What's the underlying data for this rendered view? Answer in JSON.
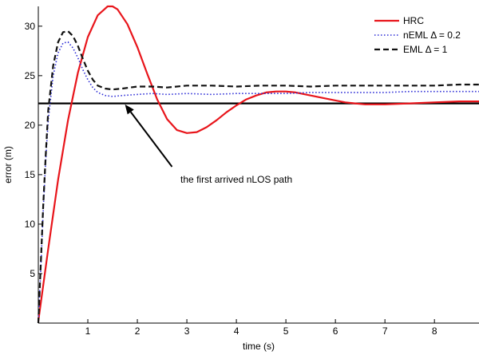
{
  "chart_data": {
    "type": "line",
    "title": "",
    "xlabel": "time (s)",
    "ylabel": "error (m)",
    "xlim": [
      0,
      8.9
    ],
    "ylim": [
      0,
      32
    ],
    "xticks": [
      1,
      2,
      3,
      4,
      5,
      6,
      7,
      8
    ],
    "yticks": [
      5,
      10,
      15,
      20,
      25,
      30
    ],
    "grid": false,
    "legend_position": "top-right",
    "series": [
      {
        "name": "HRC",
        "color": "#e8151b",
        "style": "solid",
        "x": [
          0,
          0.2,
          0.4,
          0.6,
          0.8,
          1.0,
          1.2,
          1.4,
          1.5,
          1.6,
          1.8,
          2.0,
          2.2,
          2.4,
          2.6,
          2.8,
          3.0,
          3.2,
          3.4,
          3.6,
          3.8,
          4.0,
          4.2,
          4.4,
          4.6,
          4.8,
          5.0,
          5.2,
          5.4,
          5.6,
          5.8,
          6.0,
          6.2,
          6.4,
          6.6,
          6.8,
          7.0,
          7.5,
          8.0,
          8.5,
          8.9
        ],
        "y": [
          0.2,
          7.5,
          14.5,
          20.5,
          25.3,
          28.9,
          31.1,
          32.0,
          32.0,
          31.7,
          30.2,
          27.9,
          25.2,
          22.6,
          20.6,
          19.5,
          19.2,
          19.3,
          19.8,
          20.5,
          21.3,
          22.0,
          22.6,
          23.0,
          23.3,
          23.4,
          23.4,
          23.3,
          23.1,
          22.9,
          22.7,
          22.5,
          22.3,
          22.2,
          22.1,
          22.1,
          22.1,
          22.2,
          22.3,
          22.4,
          22.4
        ]
      },
      {
        "name": "nEML Δ = 0.2",
        "color": "#2a2ad6",
        "style": "dotted",
        "x": [
          0,
          0.05,
          0.1,
          0.15,
          0.2,
          0.3,
          0.4,
          0.5,
          0.6,
          0.7,
          0.8,
          0.9,
          1.0,
          1.1,
          1.2,
          1.35,
          1.5,
          1.7,
          2.0,
          2.3,
          2.6,
          3.0,
          3.5,
          4.0,
          4.5,
          5.0,
          5.5,
          6.0,
          6.5,
          7.0,
          7.5,
          8.0,
          8.5,
          8.9
        ],
        "y": [
          0,
          5.5,
          11.5,
          16.5,
          20.5,
          25.0,
          27.3,
          28.3,
          28.4,
          27.8,
          26.8,
          25.6,
          24.6,
          23.8,
          23.3,
          23.0,
          22.9,
          23.0,
          23.1,
          23.2,
          23.1,
          23.2,
          23.1,
          23.2,
          23.2,
          23.2,
          23.3,
          23.3,
          23.3,
          23.3,
          23.4,
          23.4,
          23.4,
          23.4
        ]
      },
      {
        "name": "EML Δ = 1",
        "color": "#111111",
        "style": "dashed",
        "x": [
          0,
          0.05,
          0.1,
          0.15,
          0.2,
          0.3,
          0.4,
          0.5,
          0.6,
          0.7,
          0.8,
          0.9,
          1.0,
          1.1,
          1.2,
          1.35,
          1.5,
          1.7,
          2.0,
          2.3,
          2.6,
          3.0,
          3.5,
          4.0,
          4.5,
          5.0,
          5.5,
          6.0,
          6.5,
          7.0,
          7.5,
          8.0,
          8.5,
          8.9
        ],
        "y": [
          0,
          6.0,
          12.0,
          17.0,
          21.5,
          26.0,
          28.4,
          29.4,
          29.5,
          29.0,
          28.0,
          26.7,
          25.5,
          24.6,
          24.0,
          23.7,
          23.6,
          23.7,
          23.9,
          23.9,
          23.8,
          24.0,
          24.0,
          23.9,
          24.0,
          24.0,
          23.9,
          24.0,
          24.0,
          24.0,
          24.0,
          24.0,
          24.1,
          24.1
        ]
      },
      {
        "name": "",
        "color": "#000000",
        "style": "solid",
        "x": [
          0,
          8.9
        ],
        "y": [
          22.2,
          22.2
        ]
      }
    ],
    "annotation": {
      "text": "the first arrived nLOS path",
      "text_x": 4.0,
      "text_y": 14.2,
      "arrow_from": [
        2.7,
        15.8
      ],
      "arrow_to": [
        1.75,
        22.1
      ]
    }
  }
}
